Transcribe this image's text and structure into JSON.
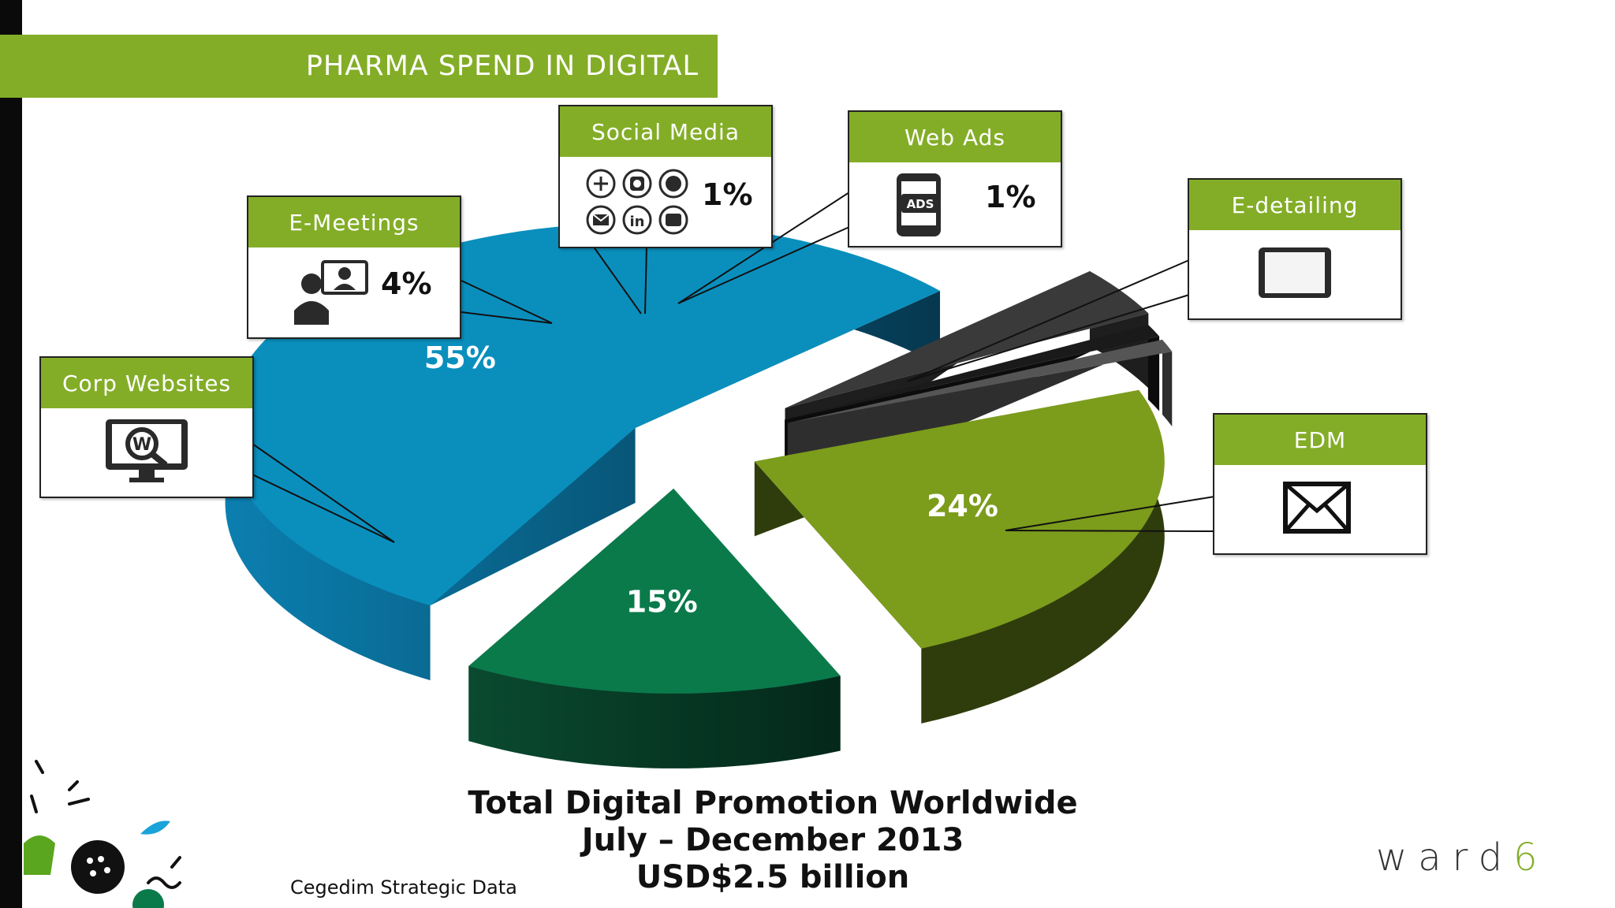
{
  "slide": {
    "header": "PHARMA SPEND IN DIGITAL",
    "source": "Cegedim Strategic Data",
    "brand_word": "ward",
    "brand_num": "6",
    "footer": {
      "line1": "Total Digital Promotion Worldwide",
      "line2": "July – December 2013",
      "line3": "USD$2.5 billion"
    }
  },
  "colors": {
    "accent": "#83ad27",
    "corp": "#0a8fbd",
    "emeet": "#3a3a3a",
    "social": "#1a1a1a",
    "webads": "#555555",
    "edetail": "#7c9c1c",
    "edm": "#0b7a4b"
  },
  "callouts": {
    "corp": {
      "title": "Corp Websites",
      "icon": "website-search-icon"
    },
    "emeet": {
      "title": "E-Meetings",
      "pct": "4%",
      "icon": "video-conference-icon"
    },
    "social": {
      "title": "Social Media",
      "pct": "1%",
      "icon": "social-icons-grid"
    },
    "webads": {
      "title": "Web Ads",
      "pct": "1%",
      "icon": "mobile-ads-icon"
    },
    "edetail": {
      "title": "E-detailing",
      "icon": "tablet-icon"
    },
    "edm": {
      "title": "EDM",
      "icon": "envelope-icon"
    }
  },
  "chart_data": {
    "type": "pie",
    "categories": [
      "Corp Websites",
      "E-Meetings",
      "Social Media",
      "Web Ads",
      "E-detailing",
      "EDM"
    ],
    "values": [
      55,
      4,
      1,
      1,
      24,
      15
    ],
    "labels": [
      "55%",
      "4%",
      "1%",
      "1%",
      "24%",
      "15%"
    ],
    "exploded": true,
    "style": "3d"
  }
}
